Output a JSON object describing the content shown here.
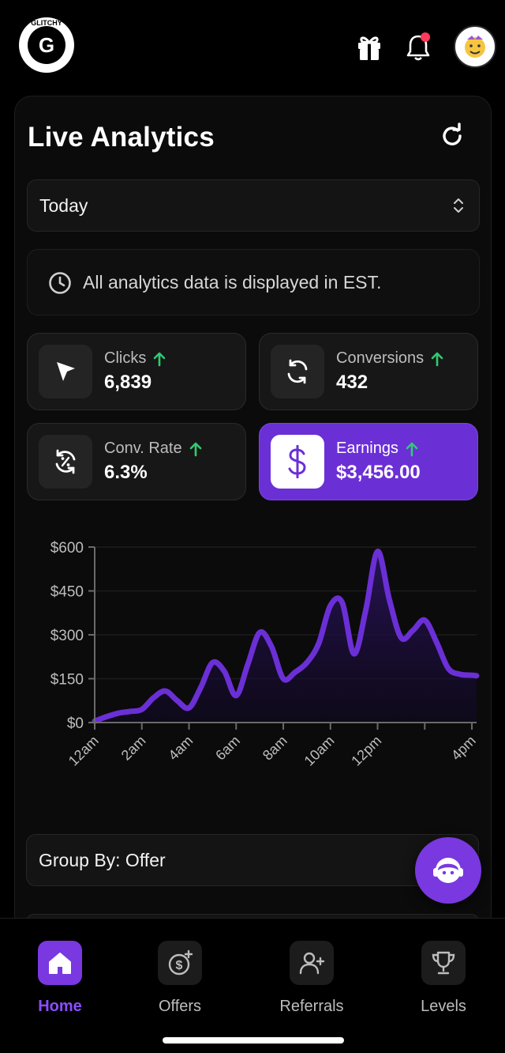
{
  "brand": {
    "logo_text": "GLITCHY",
    "logo_letter": "G"
  },
  "header": {
    "title": "Live Analytics"
  },
  "filters": {
    "date_range": "Today",
    "group_by": "Group By: Offer"
  },
  "notice": {
    "text": "All analytics data is displayed in EST."
  },
  "stats": [
    {
      "label": "Clicks",
      "value": "6,839",
      "trend": "up"
    },
    {
      "label": "Conversions",
      "value": "432",
      "trend": "up"
    },
    {
      "label": "Conv. Rate",
      "value": "6.3%",
      "trend": "up"
    },
    {
      "label": "Earnings",
      "value": "$3,456.00",
      "trend": "up",
      "selected": true
    }
  ],
  "chart_data": {
    "type": "area",
    "title": "",
    "xlabel": "",
    "ylabel": "",
    "ylim": [
      0,
      600
    ],
    "y_ticks": [
      "$0",
      "$150",
      "$300",
      "$450",
      "$600"
    ],
    "x_tick_labels": [
      "12am",
      "2am",
      "4am",
      "6am",
      "8am",
      "10am",
      "12pm",
      "4pm"
    ],
    "x_tick_hours": [
      0,
      2,
      4,
      6,
      8,
      10,
      12,
      16
    ],
    "x_range_hours": [
      0,
      16.2
    ],
    "grid": true,
    "series": [
      {
        "color": "#6b2fd6",
        "x": [
          0,
          0.5,
          1,
          1.5,
          2,
          2.5,
          3,
          3.5,
          4,
          4.5,
          5,
          5.5,
          6,
          6.5,
          7,
          7.5,
          8,
          8.5,
          9,
          9.5,
          10,
          10.5,
          11,
          11.5,
          12,
          12.5,
          13,
          13.5,
          14,
          14.5,
          15,
          15.5,
          16,
          16.2
        ],
        "y": [
          5,
          20,
          32,
          38,
          45,
          85,
          108,
          75,
          50,
          120,
          205,
          175,
          92,
          200,
          308,
          260,
          150,
          172,
          205,
          270,
          400,
          410,
          235,
          385,
          585,
          420,
          290,
          315,
          350,
          275,
          185,
          165,
          162,
          160
        ]
      }
    ],
    "colors": {
      "line": "#6b2fd6",
      "fill_top": "#2a145c",
      "axis": "#6a6a6a",
      "grid": "#1d1d1d"
    }
  },
  "nav": [
    {
      "label": "Home",
      "active": true
    },
    {
      "label": "Offers"
    },
    {
      "label": "Referrals"
    },
    {
      "label": "Levels"
    }
  ],
  "colors": {
    "accent": "#7a38e0",
    "trend_up": "#2ecc71",
    "notification": "#ff3b5c"
  }
}
